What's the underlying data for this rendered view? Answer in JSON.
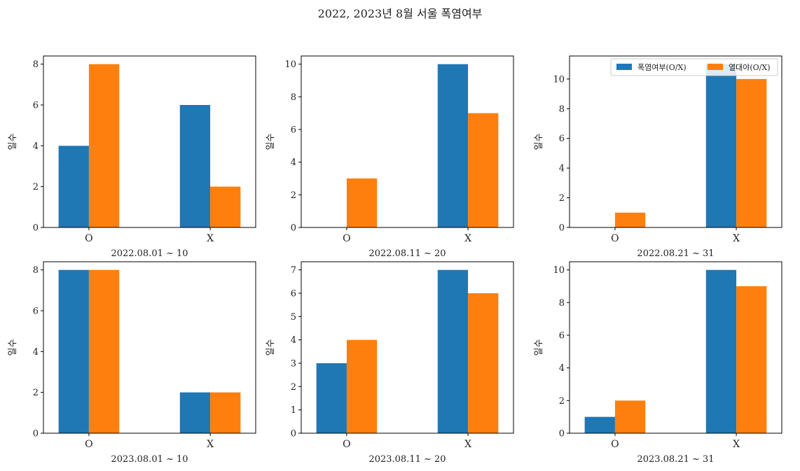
{
  "figure": {
    "title": "2022, 2023년 8월 서울 폭염여부",
    "series_colors": [
      "#1f77b4",
      "#ff7f0e"
    ]
  },
  "chart_data": [
    {
      "type": "bar",
      "categories": [
        "O",
        "X"
      ],
      "series": [
        {
          "name": "폭염여부(O/X)",
          "values": [
            4,
            6
          ]
        },
        {
          "name": "열대야(O/X)",
          "values": [
            8,
            2
          ]
        }
      ],
      "xlabel": "2022.08.01 ~ 10",
      "ylabel": "일수",
      "ylim": [
        0,
        8.4
      ],
      "yticks": [
        0,
        2,
        4,
        6,
        8
      ],
      "legend": null
    },
    {
      "type": "bar",
      "categories": [
        "O",
        "X"
      ],
      "series": [
        {
          "name": "폭염여부(O/X)",
          "values": [
            0,
            10
          ]
        },
        {
          "name": "열대야(O/X)",
          "values": [
            3,
            7
          ]
        }
      ],
      "xlabel": "2022.08.11 ~ 20",
      "ylabel": "일수",
      "ylim": [
        0,
        10.5
      ],
      "yticks": [
        0,
        2,
        4,
        6,
        8,
        10
      ],
      "legend": null
    },
    {
      "type": "bar",
      "categories": [
        "O",
        "X"
      ],
      "series": [
        {
          "name": "폭염여부(O/X)",
          "values": [
            0,
            11
          ]
        },
        {
          "name": "열대야(O/X)",
          "values": [
            1,
            10
          ]
        }
      ],
      "xlabel": "2022.08.21 ~ 31",
      "ylabel": "일수",
      "ylim": [
        0,
        11.55
      ],
      "yticks": [
        0,
        2,
        4,
        6,
        8,
        10
      ],
      "legend": "top-right"
    },
    {
      "type": "bar",
      "categories": [
        "O",
        "X"
      ],
      "series": [
        {
          "name": "폭염여부(O/X)",
          "values": [
            8,
            2
          ]
        },
        {
          "name": "열대야(O/X)",
          "values": [
            8,
            2
          ]
        }
      ],
      "xlabel": "2023.08.01 ~ 10",
      "ylabel": "일수",
      "ylim": [
        0,
        8.4
      ],
      "yticks": [
        0,
        2,
        4,
        6,
        8
      ],
      "legend": null
    },
    {
      "type": "bar",
      "categories": [
        "O",
        "X"
      ],
      "series": [
        {
          "name": "폭염여부(O/X)",
          "values": [
            3,
            7
          ]
        },
        {
          "name": "열대야(O/X)",
          "values": [
            4,
            6
          ]
        }
      ],
      "xlabel": "2023.08.11 ~ 20",
      "ylabel": "일수",
      "ylim": [
        0,
        7.35
      ],
      "yticks": [
        0,
        1,
        2,
        3,
        4,
        5,
        6,
        7
      ],
      "legend": null
    },
    {
      "type": "bar",
      "categories": [
        "O",
        "X"
      ],
      "series": [
        {
          "name": "폭염여부(O/X)",
          "values": [
            1,
            10
          ]
        },
        {
          "name": "열대야(O/X)",
          "values": [
            2,
            9
          ]
        }
      ],
      "xlabel": "2023.08.21 ~ 31",
      "ylabel": "일수",
      "ylim": [
        0,
        10.5
      ],
      "yticks": [
        0,
        2,
        4,
        6,
        8,
        10
      ],
      "legend": null
    }
  ]
}
